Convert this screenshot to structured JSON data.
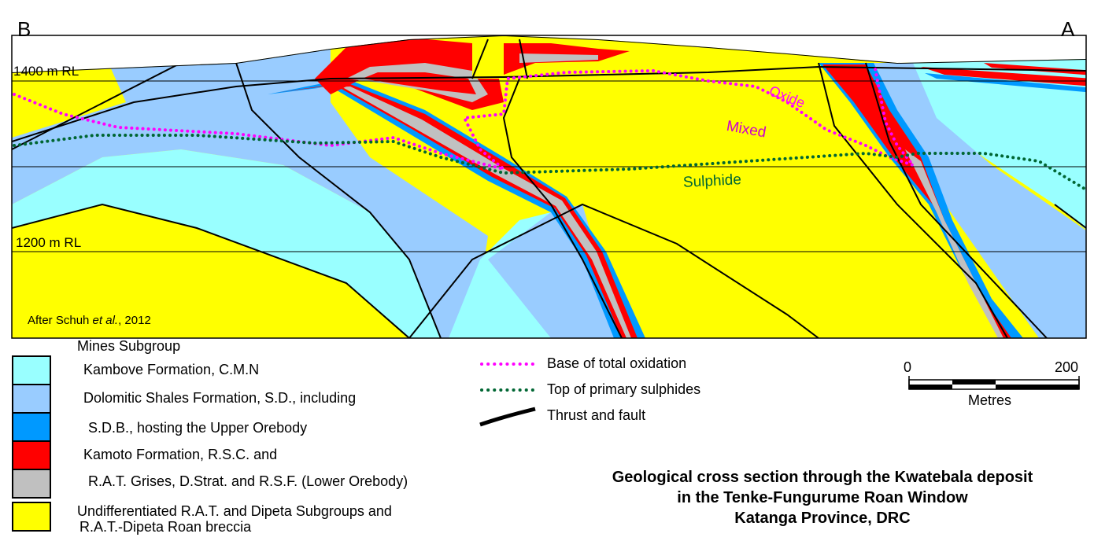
{
  "section": {
    "end_left": "B",
    "end_right": "A",
    "rl_upper": "1400 m RL",
    "rl_lower": "1200 m RL",
    "credit_prefix": "After Schuh ",
    "credit_italic": "et al.",
    "credit_suffix": ", 2012",
    "zone_labels": {
      "oxide": "Oxide",
      "mixed": "Mixed",
      "sulphide": "Sulphide"
    },
    "colors": {
      "kambove": "#99ffff",
      "dolomitic_shales": "#99ccff",
      "sdb": "#0099ff",
      "kamoto": "#ff0000",
      "rat_grises": "#c0c0c0",
      "undifferentiated": "#ffff00",
      "oxidation_line": "#ff00ff",
      "sulphide_line": "#006633"
    }
  },
  "legend": {
    "group_heading": "Mines Subgroup",
    "units": [
      {
        "label": "Kambove Formation, C.M.N",
        "color": "#99ffff"
      },
      {
        "label": "Dolomitic Shales Formation, S.D., including",
        "color": "#99ccff"
      },
      {
        "label": "S.D.B., hosting the Upper Orebody",
        "color": "#0099ff"
      },
      {
        "label": "Kamoto Formation, R.S.C. and",
        "color": "#ff0000"
      },
      {
        "label": "R.A.T. Grises, D.Strat. and R.S.F. (Lower Orebody)",
        "color": "#c0c0c0"
      },
      {
        "label": "Undifferentiated R.A.T. and Dipeta Subgroups and",
        "label2": "R.A.T.-Dipeta Roan breccia",
        "color": "#ffff00"
      }
    ],
    "lines": [
      {
        "label": "Base of total oxidation",
        "symbol": "magenta-dotted-line"
      },
      {
        "label": "Top of primary sulphides",
        "symbol": "green-dotted-line"
      },
      {
        "label": "Thrust and fault",
        "symbol": "thick-black-line"
      }
    ]
  },
  "scale_bar": {
    "min": "0",
    "max": "200",
    "unit": "Metres"
  },
  "title": {
    "line1": "Geological cross section through the Kwatebala deposit",
    "line2": "in the Tenke-Fungurume Roan Window",
    "line3": "Katanga Province, DRC"
  }
}
